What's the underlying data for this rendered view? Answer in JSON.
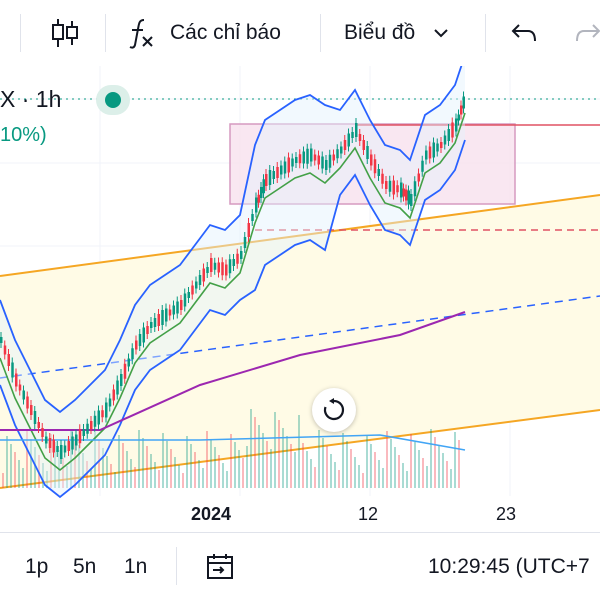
{
  "toolbar": {
    "indicators_label": "Các chỉ báo",
    "chart_type_label": "Biểu đồ",
    "icons": [
      "candlestick-icon",
      "function-icon",
      "chevron-down-icon",
      "undo-icon",
      "redo-icon"
    ]
  },
  "legend": {
    "symbol_interval": "X · 1h",
    "change": "10%)"
  },
  "time_axis": {
    "labels": [
      "2024",
      "12",
      "23"
    ]
  },
  "bottom_bar": {
    "range_1": "1p",
    "range_2": "5n",
    "range_3": "1n",
    "clock": "10:29:45 (UTC+7"
  },
  "colors": {
    "up": "#089981",
    "down": "#f23645",
    "bollinger": "#2962ff",
    "ma_fast": "#43a047",
    "ma_slow": "#9c27b0",
    "channel": "#f5a623",
    "box_fill": "#f8e1ee",
    "box_border": "#d69ac0"
  }
}
